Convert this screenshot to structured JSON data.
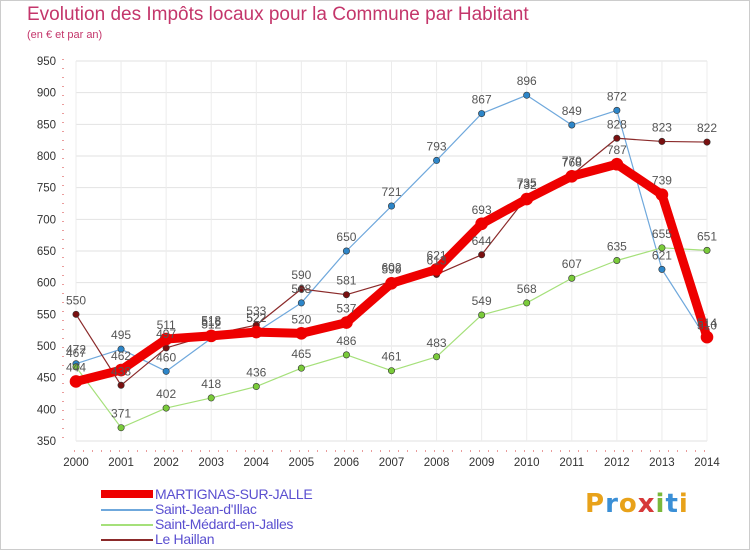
{
  "header": {
    "title": "Evolution des Impôts locaux pour la Commune par Habitant",
    "subtitle": "(en € et par an)"
  },
  "logo": {
    "letters": [
      "P",
      "r",
      "o",
      "x",
      "i",
      "t",
      "i"
    ],
    "colors": [
      "#e8a21a",
      "#3a8fd6",
      "#e8a21a",
      "#d6393a",
      "#7ab83a",
      "#3a8fd6",
      "#e8a21a"
    ]
  },
  "chart_data": {
    "type": "line",
    "categories": [
      "2000",
      "2001",
      "2002",
      "2003",
      "2004",
      "2005",
      "2006",
      "2007",
      "2008",
      "2009",
      "2010",
      "2011",
      "2012",
      "2013",
      "2014"
    ],
    "ylim": [
      350,
      950
    ],
    "yticks": [
      350,
      400,
      450,
      500,
      550,
      600,
      650,
      700,
      750,
      800,
      850,
      900,
      950
    ],
    "grid": true,
    "legend_position": "bottom-left",
    "series": [
      {
        "name": "MARTIGNAS-SUR-JALLE",
        "color": "#ee0000",
        "width": 9,
        "marker_color": "#ee0000",
        "values": [
          444,
          462,
          511,
          516,
          522,
          520,
          537,
          599,
          621,
          693,
          732,
          768,
          787,
          739,
          514
        ]
      },
      {
        "name": "Saint-Jean-d'Illac",
        "color": "#6fa8dc",
        "width": 1.2,
        "marker_color": "#2d86c9",
        "values": [
          472,
          495,
          460,
          512,
          522,
          568,
          650,
          721,
          793,
          867,
          896,
          849,
          872,
          621,
          510
        ]
      },
      {
        "name": "Saint-Médard-en-Jalles",
        "color": "#a5e07a",
        "width": 1.2,
        "marker_color": "#7acb3a",
        "values": [
          467,
          371,
          402,
          418,
          436,
          465,
          486,
          461,
          483,
          549,
          568,
          607,
          635,
          655,
          651
        ]
      },
      {
        "name": "Le Haillan",
        "color": "#8b2a2a",
        "width": 1.2,
        "marker_color": "#7a1010",
        "values": [
          550,
          438,
          497,
          518,
          533,
          590,
          581,
          602,
          613,
          644,
          735,
          770,
          828,
          823,
          822
        ]
      }
    ]
  }
}
